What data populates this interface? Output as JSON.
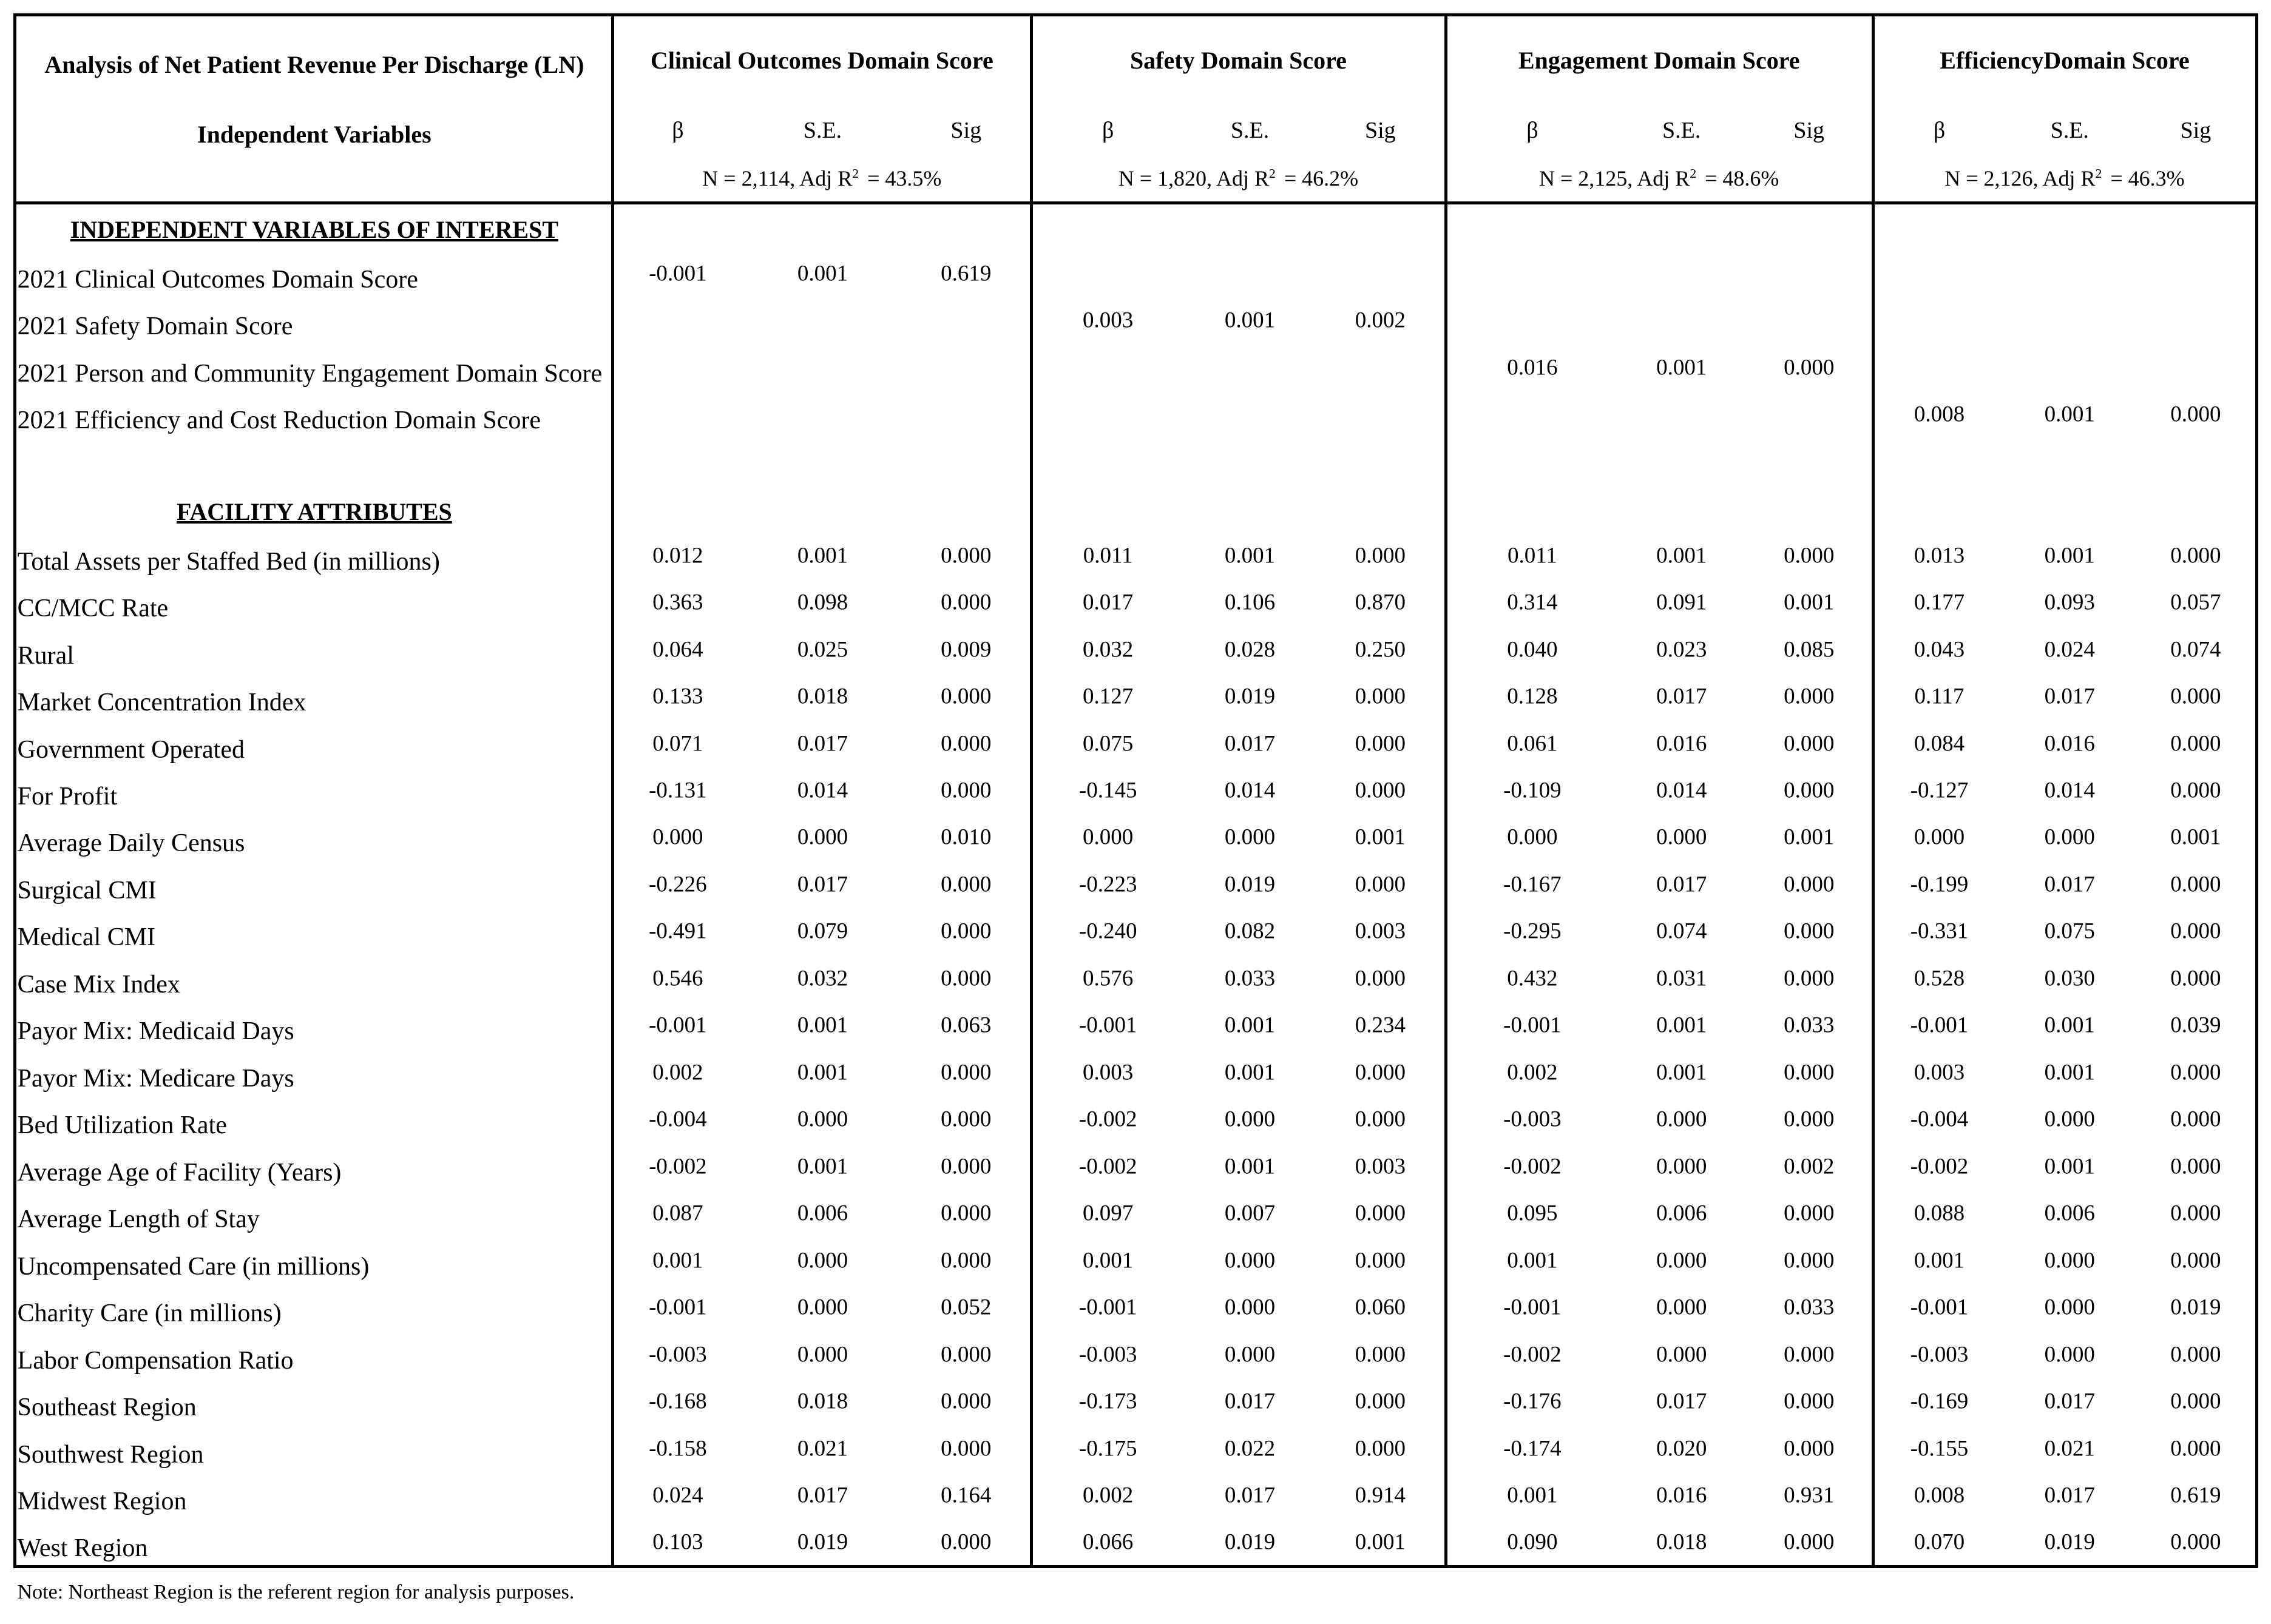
{
  "header": {
    "title": "Analysis of Net Patient Revenue Per Discharge (LN)",
    "subtitle": "Independent Variables"
  },
  "models": [
    {
      "name": "Clinical Outcomes Domain Score",
      "columns": [
        "β",
        "S.E.",
        "Sig"
      ],
      "n_label": "N = 2,114, Adj R",
      "sup": "2",
      "r2_label": "= 43.5%"
    },
    {
      "name": "Safety Domain Score",
      "columns": [
        "β",
        "S.E.",
        "Sig"
      ],
      "n_label": "N = 1,820, Adj R",
      "sup": "2",
      "r2_label": "= 46.2%"
    },
    {
      "name": "Engagement Domain Score",
      "columns": [
        "β",
        "S.E.",
        "Sig"
      ],
      "n_label": "N = 2,125, Adj R",
      "sup": "2",
      "r2_label": "= 48.6%"
    },
    {
      "name": "EfficiencyDomain Score",
      "columns": [
        "β",
        "S.E.",
        "Sig"
      ],
      "n_label": "N = 2,126, Adj R",
      "sup": "2",
      "r2_label": "= 46.3%"
    }
  ],
  "sections": [
    {
      "title": "INDEPENDENT VARIABLES OF INTEREST",
      "rows": [
        {
          "label": "2021 Clinical Outcomes Domain Score",
          "values": [
            [
              "-0.001",
              "0.001",
              "0.619"
            ],
            null,
            null,
            null
          ]
        },
        {
          "label": "2021 Safety Domain Score",
          "values": [
            null,
            [
              "0.003",
              "0.001",
              "0.002"
            ],
            null,
            null
          ]
        },
        {
          "label": "2021 Person and Community Engagement Domain Score",
          "values": [
            null,
            null,
            [
              "0.016",
              "0.001",
              "0.000"
            ],
            null
          ]
        },
        {
          "label": "2021 Efficiency and Cost Reduction Domain Score",
          "values": [
            null,
            null,
            null,
            [
              "0.008",
              "0.001",
              "0.000"
            ]
          ]
        }
      ]
    },
    {
      "title": "FACILITY ATTRIBUTES",
      "rows": [
        {
          "label": "Total Assets per Staffed Bed (in millions)",
          "values": [
            [
              "0.012",
              "0.001",
              "0.000"
            ],
            [
              "0.011",
              "0.001",
              "0.000"
            ],
            [
              "0.011",
              "0.001",
              "0.000"
            ],
            [
              "0.013",
              "0.001",
              "0.000"
            ]
          ]
        },
        {
          "label": "CC/MCC Rate",
          "values": [
            [
              "0.363",
              "0.098",
              "0.000"
            ],
            [
              "0.017",
              "0.106",
              "0.870"
            ],
            [
              "0.314",
              "0.091",
              "0.001"
            ],
            [
              "0.177",
              "0.093",
              "0.057"
            ]
          ]
        },
        {
          "label": "Rural",
          "values": [
            [
              "0.064",
              "0.025",
              "0.009"
            ],
            [
              "0.032",
              "0.028",
              "0.250"
            ],
            [
              "0.040",
              "0.023",
              "0.085"
            ],
            [
              "0.043",
              "0.024",
              "0.074"
            ]
          ]
        },
        {
          "label": "Market Concentration Index",
          "values": [
            [
              "0.133",
              "0.018",
              "0.000"
            ],
            [
              "0.127",
              "0.019",
              "0.000"
            ],
            [
              "0.128",
              "0.017",
              "0.000"
            ],
            [
              "0.117",
              "0.017",
              "0.000"
            ]
          ]
        },
        {
          "label": "Government Operated",
          "values": [
            [
              "0.071",
              "0.017",
              "0.000"
            ],
            [
              "0.075",
              "0.017",
              "0.000"
            ],
            [
              "0.061",
              "0.016",
              "0.000"
            ],
            [
              "0.084",
              "0.016",
              "0.000"
            ]
          ]
        },
        {
          "label": "For Profit",
          "values": [
            [
              "-0.131",
              "0.014",
              "0.000"
            ],
            [
              "-0.145",
              "0.014",
              "0.000"
            ],
            [
              "-0.109",
              "0.014",
              "0.000"
            ],
            [
              "-0.127",
              "0.014",
              "0.000"
            ]
          ]
        },
        {
          "label": "Average Daily Census",
          "values": [
            [
              "0.000",
              "0.000",
              "0.010"
            ],
            [
              "0.000",
              "0.000",
              "0.001"
            ],
            [
              "0.000",
              "0.000",
              "0.001"
            ],
            [
              "0.000",
              "0.000",
              "0.001"
            ]
          ]
        },
        {
          "label": "Surgical CMI",
          "values": [
            [
              "-0.226",
              "0.017",
              "0.000"
            ],
            [
              "-0.223",
              "0.019",
              "0.000"
            ],
            [
              "-0.167",
              "0.017",
              "0.000"
            ],
            [
              "-0.199",
              "0.017",
              "0.000"
            ]
          ]
        },
        {
          "label": "Medical CMI",
          "values": [
            [
              "-0.491",
              "0.079",
              "0.000"
            ],
            [
              "-0.240",
              "0.082",
              "0.003"
            ],
            [
              "-0.295",
              "0.074",
              "0.000"
            ],
            [
              "-0.331",
              "0.075",
              "0.000"
            ]
          ]
        },
        {
          "label": "Case Mix Index",
          "values": [
            [
              "0.546",
              "0.032",
              "0.000"
            ],
            [
              "0.576",
              "0.033",
              "0.000"
            ],
            [
              "0.432",
              "0.031",
              "0.000"
            ],
            [
              "0.528",
              "0.030",
              "0.000"
            ]
          ]
        },
        {
          "label": "Payor Mix: Medicaid Days",
          "values": [
            [
              "-0.001",
              "0.001",
              "0.063"
            ],
            [
              "-0.001",
              "0.001",
              "0.234"
            ],
            [
              "-0.001",
              "0.001",
              "0.033"
            ],
            [
              "-0.001",
              "0.001",
              "0.039"
            ]
          ]
        },
        {
          "label": "Payor Mix: Medicare Days",
          "values": [
            [
              "0.002",
              "0.001",
              "0.000"
            ],
            [
              "0.003",
              "0.001",
              "0.000"
            ],
            [
              "0.002",
              "0.001",
              "0.000"
            ],
            [
              "0.003",
              "0.001",
              "0.000"
            ]
          ]
        },
        {
          "label": "Bed Utilization Rate",
          "values": [
            [
              "-0.004",
              "0.000",
              "0.000"
            ],
            [
              "-0.002",
              "0.000",
              "0.000"
            ],
            [
              "-0.003",
              "0.000",
              "0.000"
            ],
            [
              "-0.004",
              "0.000",
              "0.000"
            ]
          ]
        },
        {
          "label": "Average Age of Facility (Years)",
          "values": [
            [
              "-0.002",
              "0.001",
              "0.000"
            ],
            [
              "-0.002",
              "0.001",
              "0.003"
            ],
            [
              "-0.002",
              "0.000",
              "0.002"
            ],
            [
              "-0.002",
              "0.001",
              "0.000"
            ]
          ]
        },
        {
          "label": "Average Length of Stay",
          "values": [
            [
              "0.087",
              "0.006",
              "0.000"
            ],
            [
              "0.097",
              "0.007",
              "0.000"
            ],
            [
              "0.095",
              "0.006",
              "0.000"
            ],
            [
              "0.088",
              "0.006",
              "0.000"
            ]
          ]
        },
        {
          "label": "Uncompensated Care (in millions)",
          "values": [
            [
              "0.001",
              "0.000",
              "0.000"
            ],
            [
              "0.001",
              "0.000",
              "0.000"
            ],
            [
              "0.001",
              "0.000",
              "0.000"
            ],
            [
              "0.001",
              "0.000",
              "0.000"
            ]
          ]
        },
        {
          "label": "Charity Care (in millions)",
          "values": [
            [
              "-0.001",
              "0.000",
              "0.052"
            ],
            [
              "-0.001",
              "0.000",
              "0.060"
            ],
            [
              "-0.001",
              "0.000",
              "0.033"
            ],
            [
              "-0.001",
              "0.000",
              "0.019"
            ]
          ]
        },
        {
          "label": "Labor Compensation Ratio",
          "values": [
            [
              "-0.003",
              "0.000",
              "0.000"
            ],
            [
              "-0.003",
              "0.000",
              "0.000"
            ],
            [
              "-0.002",
              "0.000",
              "0.000"
            ],
            [
              "-0.003",
              "0.000",
              "0.000"
            ]
          ]
        },
        {
          "label": "Southeast Region",
          "values": [
            [
              "-0.168",
              "0.018",
              "0.000"
            ],
            [
              "-0.173",
              "0.017",
              "0.000"
            ],
            [
              "-0.176",
              "0.017",
              "0.000"
            ],
            [
              "-0.169",
              "0.017",
              "0.000"
            ]
          ]
        },
        {
          "label": "Southwest Region",
          "values": [
            [
              "-0.158",
              "0.021",
              "0.000"
            ],
            [
              "-0.175",
              "0.022",
              "0.000"
            ],
            [
              "-0.174",
              "0.020",
              "0.000"
            ],
            [
              "-0.155",
              "0.021",
              "0.000"
            ]
          ]
        },
        {
          "label": "Midwest Region",
          "values": [
            [
              "0.024",
              "0.017",
              "0.164"
            ],
            [
              "0.002",
              "0.017",
              "0.914"
            ],
            [
              "0.001",
              "0.016",
              "0.931"
            ],
            [
              "0.008",
              "0.017",
              "0.619"
            ]
          ]
        },
        {
          "label": "West Region",
          "values": [
            [
              "0.103",
              "0.019",
              "0.000"
            ],
            [
              "0.066",
              "0.019",
              "0.001"
            ],
            [
              "0.090",
              "0.018",
              "0.000"
            ],
            [
              "0.070",
              "0.019",
              "0.000"
            ]
          ]
        }
      ]
    }
  ],
  "note": "Note: Northeast Region is the referent region for analysis purposes."
}
